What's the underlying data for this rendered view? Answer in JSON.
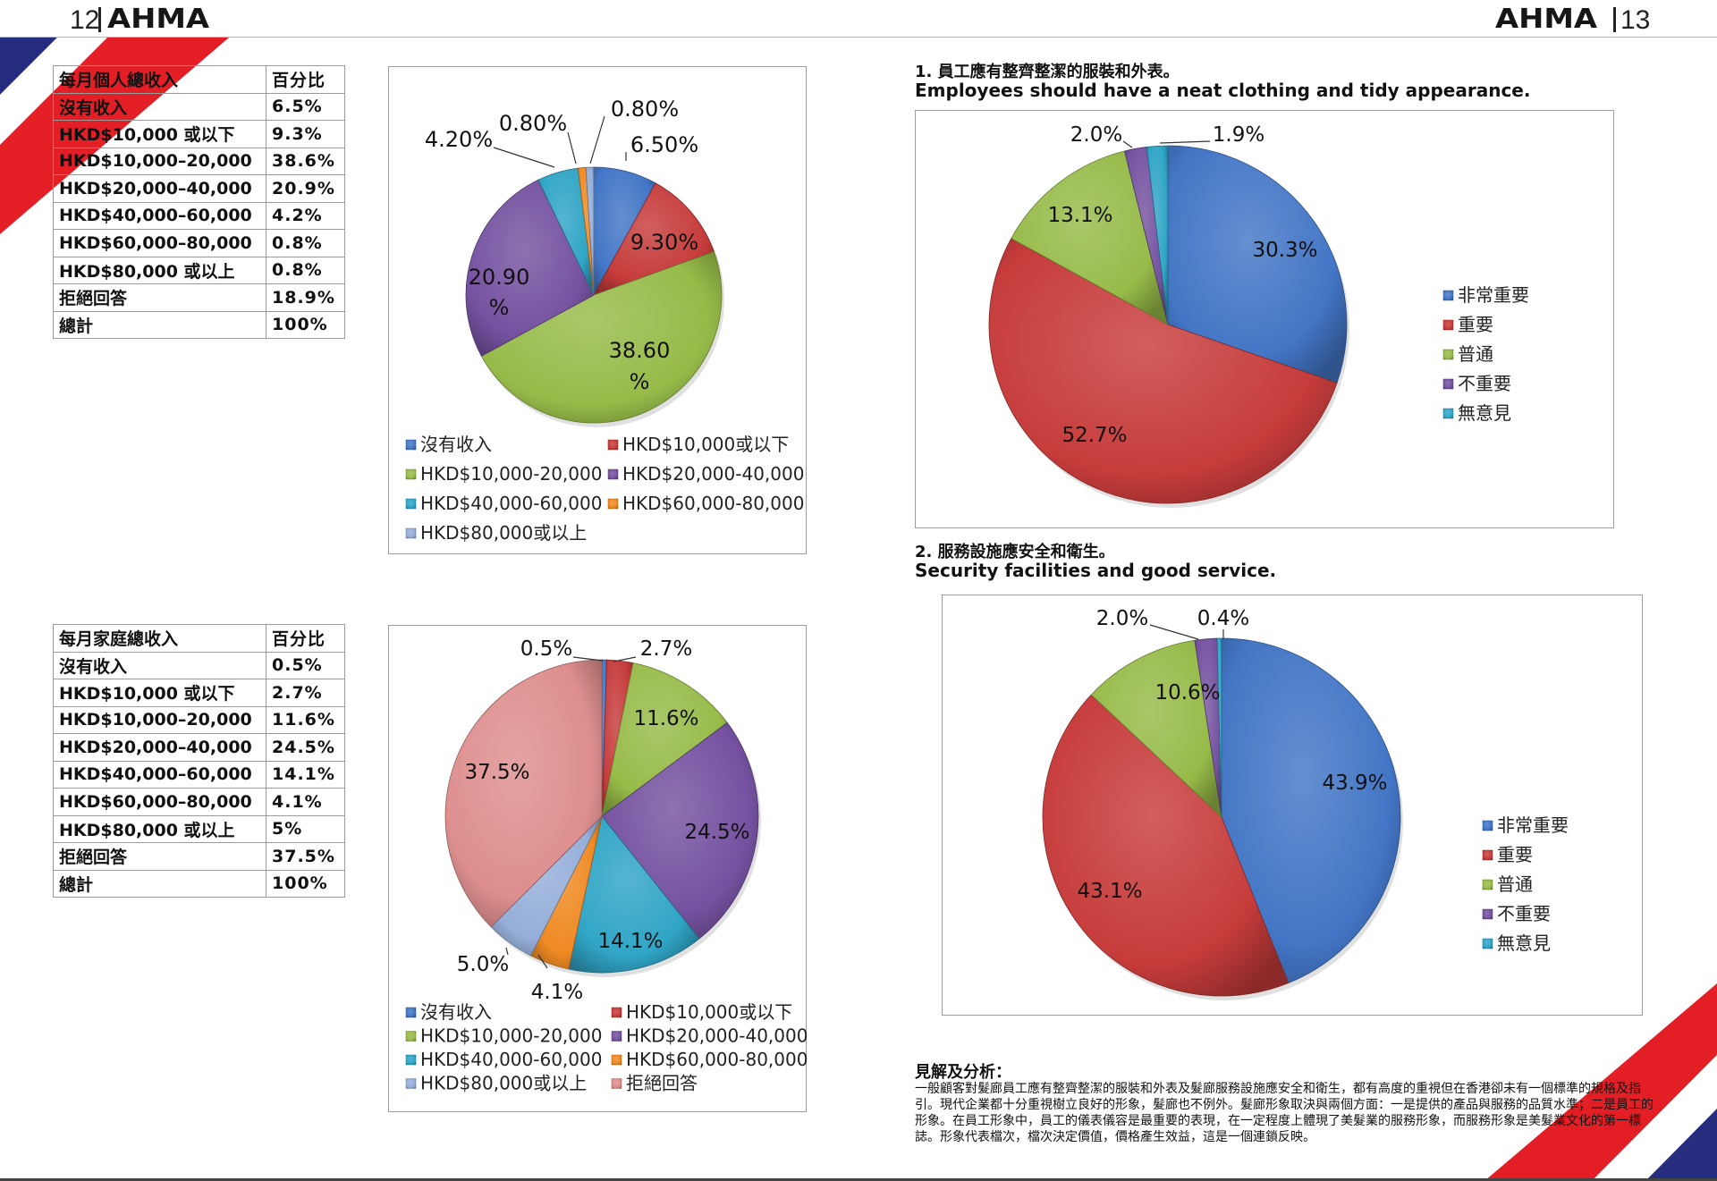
{
  "header": {
    "left_page": "12",
    "right_page": "13",
    "logo_text": "AHMA"
  },
  "colors": {
    "blue": "#4376c6",
    "red": "#c63c3b",
    "green": "#97bb49",
    "purple": "#7552a0",
    "cyan": "#30a5c6",
    "orange": "#ef8a23",
    "lightblue": "#95aed9",
    "pink": "#dd8f8e",
    "stripe_red": "#e31e25",
    "stripe_blue": "#262c7e"
  },
  "table1": {
    "headers": [
      "每月個人總收入",
      "百分比"
    ],
    "rows": [
      [
        "沒有收入",
        "6.5%"
      ],
      [
        "HKD$10,000 或以下",
        "9.3%"
      ],
      [
        "HKD$10,000–20,000",
        "38.6%"
      ],
      [
        "HKD$20,000–40,000",
        "20.9%"
      ],
      [
        "HKD$40,000–60,000",
        "4.2%"
      ],
      [
        "HKD$60,000–80,000",
        "0.8%"
      ],
      [
        "HKD$80,000 或以上",
        "0.8%"
      ],
      [
        "拒絕回答",
        "18.9%"
      ],
      [
        "總計",
        "100%"
      ]
    ]
  },
  "table2": {
    "headers": [
      "每月家庭總收入",
      "百分比"
    ],
    "rows": [
      [
        "沒有收入",
        "0.5%"
      ],
      [
        "HKD$10,000 或以下",
        "2.7%"
      ],
      [
        "HKD$10,000–20,000",
        "11.6%"
      ],
      [
        "HKD$20,000–40,000",
        "24.5%"
      ],
      [
        "HKD$40,000–60,000",
        "14.1%"
      ],
      [
        "HKD$60,000–80,000",
        "4.1%"
      ],
      [
        "HKD$80,000 或以上",
        "5%"
      ],
      [
        "拒絕回答",
        "37.5%"
      ],
      [
        "總計",
        "100%"
      ]
    ]
  },
  "q1": {
    "title_zh": "1. 員工應有整齊整潔的服裝和外表。",
    "title_en": "Employees should have a neat clothing and tidy appearance."
  },
  "q2": {
    "title_zh": "2. 服務設施應安全和衛生。",
    "title_en": "Security facilities and good service."
  },
  "analysis": {
    "heading": "見解及分析：",
    "body": "一般顧客對髮廊員工應有整齊整潔的服裝和外表及髮廊服務設施應安全和衛生，都有高度的重視但在香港卻未有一個標準的規格及指引。現代企業都十分重視樹立良好的形象，髮廊也不例外。髮廊形象取決與兩個方面：一是提供的產品與服務的品質水準；二是員工的形象。在員工形象中，員工的儀表儀容是最重要的表現，在一定程度上體現了美髮業的服務形象，而服務形象是美髮業文化的第一標誌。形象代表檔次，檔次決定價值，價格產生效益，這是一個連鎖反映。"
  },
  "chart_data": [
    {
      "id": "personal-income",
      "type": "pie",
      "categories": [
        "沒有收入",
        "HKD$10,000或以下",
        "HKD$10,000-20,000",
        "HKD$20,000-40,000",
        "HKD$40,000-60,000",
        "HKD$60,000-80,000",
        "HKD$80,000或以上"
      ],
      "values": [
        6.5,
        9.3,
        38.6,
        20.9,
        4.2,
        0.8,
        0.8
      ],
      "labels": [
        "6.50%",
        "9.30%",
        "38.60 %",
        "20.90 %",
        "4.20%",
        "0.80%",
        "0.80%"
      ],
      "colors": [
        "#4376c6",
        "#c63c3b",
        "#97bb49",
        "#7552a0",
        "#30a5c6",
        "#ef8a23",
        "#95aed9"
      ],
      "legend": "bottom"
    },
    {
      "id": "household-income",
      "type": "pie",
      "categories": [
        "沒有收入",
        "HKD$10,000或以下",
        "HKD$10,000-20,000",
        "HKD$20,000-40,000",
        "HKD$40,000-60,000",
        "HKD$60,000-80,000",
        "HKD$80,000或以上",
        "拒絕回答"
      ],
      "values": [
        0.5,
        2.7,
        11.6,
        24.5,
        14.1,
        4.1,
        5.0,
        37.5
      ],
      "labels": [
        "0.5%",
        "2.7%",
        "11.6%",
        "24.5%",
        "14.1%",
        "4.1%",
        "5.0%",
        "37.5%"
      ],
      "colors": [
        "#4376c6",
        "#c63c3b",
        "#97bb49",
        "#7552a0",
        "#30a5c6",
        "#ef8a23",
        "#95aed9",
        "#dd8f8e"
      ],
      "legend": "bottom"
    },
    {
      "id": "q1-appearance",
      "type": "pie",
      "categories": [
        "非常重要",
        "重要",
        "普通",
        "不重要",
        "無意見"
      ],
      "values": [
        30.3,
        52.7,
        13.1,
        2.0,
        1.9
      ],
      "labels": [
        "30.3%",
        "52.7%",
        "13.1%",
        "2.0%",
        "1.9%"
      ],
      "colors": [
        "#4376c6",
        "#c63c3b",
        "#97bb49",
        "#7552a0",
        "#30a5c6"
      ],
      "legend": "right"
    },
    {
      "id": "q2-facilities",
      "type": "pie",
      "categories": [
        "非常重要",
        "重要",
        "普通",
        "不重要",
        "無意見"
      ],
      "values": [
        43.9,
        43.1,
        10.6,
        2.0,
        0.4
      ],
      "labels": [
        "43.9%",
        "43.1%",
        "10.6%",
        "2.0%",
        "0.4%"
      ],
      "colors": [
        "#4376c6",
        "#c63c3b",
        "#97bb49",
        "#7552a0",
        "#30a5c6"
      ],
      "legend": "right"
    }
  ]
}
